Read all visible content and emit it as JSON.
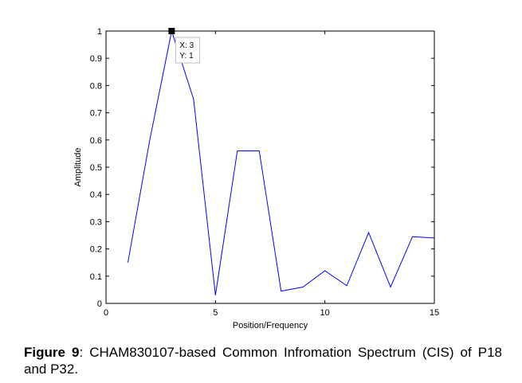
{
  "chart_data": {
    "type": "line",
    "title": "",
    "xlabel": "Position/Frequency",
    "ylabel": "Amplitude",
    "xlim": [
      0,
      15
    ],
    "ylim": [
      0,
      1
    ],
    "xticks": [
      "0",
      "5",
      "10",
      "15"
    ],
    "yticks": [
      "0",
      "0.1",
      "0.2",
      "0.3",
      "0.4",
      "0.5",
      "0.6",
      "0.7",
      "0.8",
      "0.9",
      "1"
    ],
    "grid": false,
    "series": [
      {
        "color": "#0000ff",
        "x": [
          1,
          2,
          3,
          4,
          5,
          6,
          7,
          8,
          9,
          10,
          11,
          12,
          13,
          14,
          15
        ],
        "y": [
          0.15,
          0.6,
          1.0,
          0.75,
          0.03,
          0.56,
          0.56,
          0.045,
          0.06,
          0.12,
          0.065,
          0.26,
          0.06,
          0.245,
          0.24
        ]
      }
    ],
    "datatip": {
      "x": 3,
      "y": 1,
      "x_text": "X: 3",
      "y_text": "Y: 1"
    }
  },
  "caption": {
    "label": "Figure 9",
    "text": ": CHAM830107-based Common Infromation Spectrum (CIS) of P18 and P32."
  }
}
